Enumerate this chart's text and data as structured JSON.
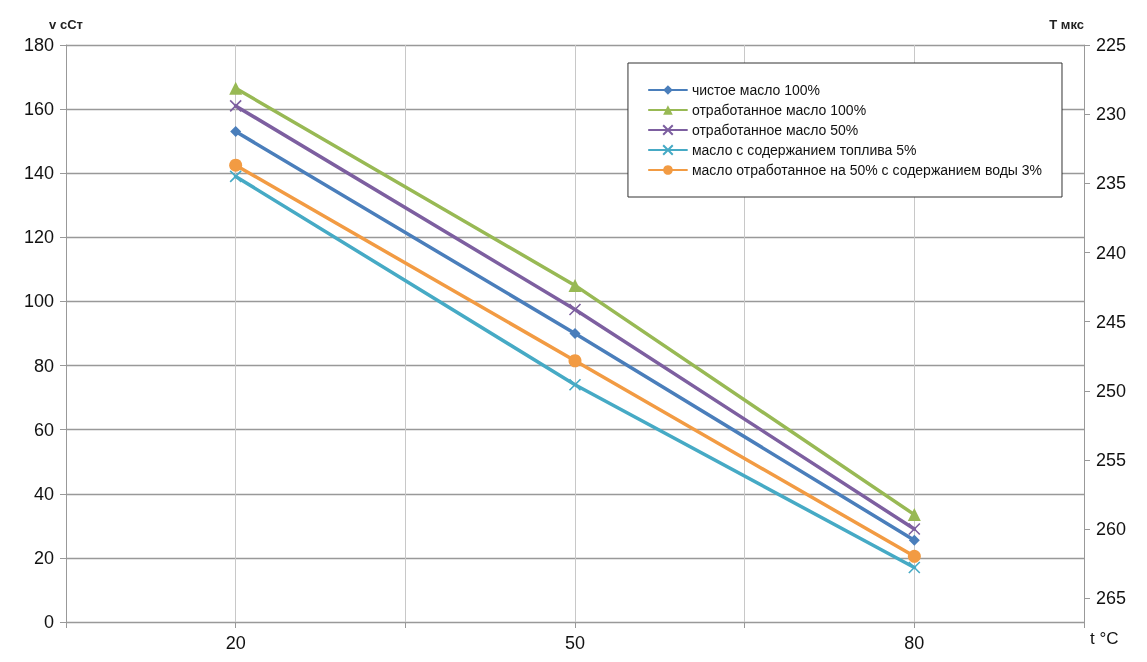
{
  "chart_data": {
    "type": "line",
    "xlabel": "t °C",
    "ylabel": "v cСт",
    "y2label": "T мкс",
    "x": [
      20,
      50,
      80
    ],
    "xlim": [
      5,
      95
    ],
    "xticks": [
      {
        "value": 5,
        "label": null
      },
      20,
      {
        "value": 35,
        "label": null
      },
      50,
      {
        "value": 65,
        "label": null
      },
      80,
      {
        "value": 95,
        "label": null
      }
    ],
    "ylim": [
      0,
      180
    ],
    "yticks": [
      0,
      20,
      40,
      60,
      80,
      100,
      120,
      140,
      160,
      180
    ],
    "y2lim": [
      266.7,
      225
    ],
    "y2ticks": [
      225,
      230,
      235,
      240,
      245,
      250,
      255,
      260,
      265
    ],
    "grid": true,
    "legend": "top right",
    "series": [
      {
        "name": "чистое масло 100%",
        "color": "#4a7ebb",
        "marker": "diamond",
        "values": [
          153,
          90,
          25.5
        ]
      },
      {
        "name": "отработанное масло 100%",
        "color": "#98b954",
        "marker": "triangle",
        "values": [
          166.5,
          105,
          33.5
        ]
      },
      {
        "name": "отработанное масло 50%",
        "color": "#7d5fa0",
        "marker": "cross",
        "values": [
          161,
          97.5,
          29
        ]
      },
      {
        "name": "масло с содержанием топлива 5%",
        "color": "#46aac5",
        "marker": "cross",
        "values": [
          139,
          74,
          17
        ]
      },
      {
        "name": "масло отработанное на 50% с содержанием воды 3%",
        "color": "#f29b43",
        "marker": "circle",
        "values": [
          142.5,
          81.5,
          20.5
        ]
      }
    ]
  }
}
